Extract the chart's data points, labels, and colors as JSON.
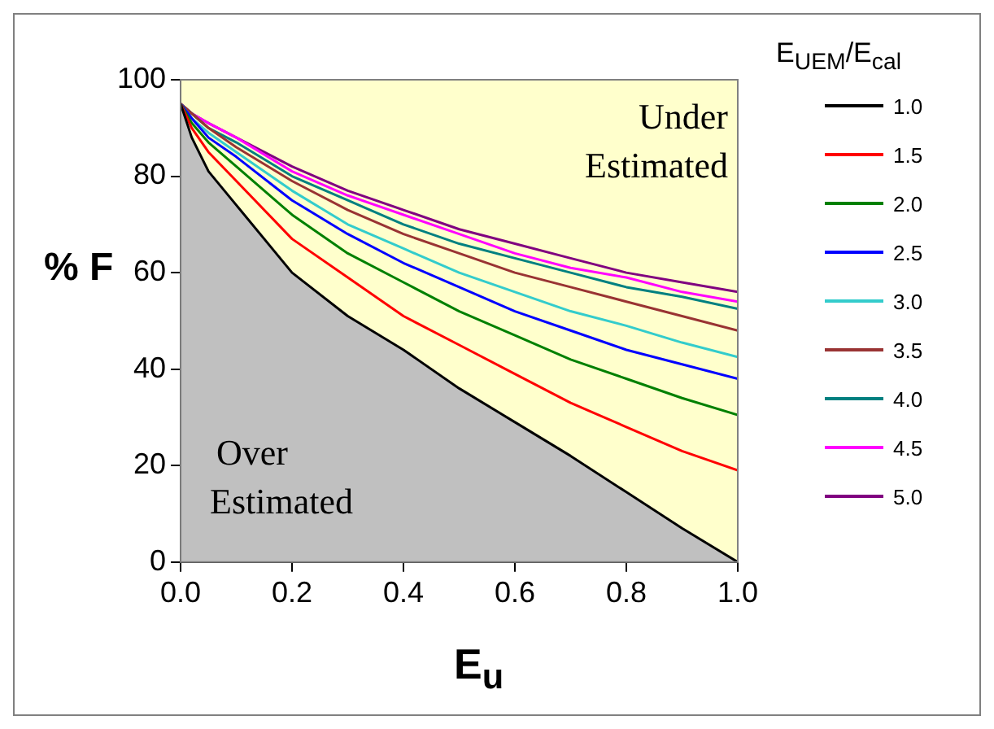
{
  "chart_data": {
    "type": "line",
    "xlabel": "E$_{u}$",
    "ylabel": "% F",
    "legend_title": "E$_{UEM}$/E$_{cal}$",
    "x": [
      0,
      0.02,
      0.05,
      0.1,
      0.2,
      0.3,
      0.4,
      0.5,
      0.6,
      0.7,
      0.8,
      0.9,
      1.0
    ],
    "series": [
      {
        "name": "1.0",
        "type": "area",
        "color": "#000000",
        "values": [
          95,
          88,
          81,
          74,
          60,
          51,
          44,
          36,
          29,
          22,
          14.5,
          7,
          0
        ]
      },
      {
        "name": "1.5",
        "color": "#ff0000",
        "values": [
          95,
          90,
          85,
          79,
          67,
          59,
          51,
          45,
          39,
          33,
          28,
          23,
          19
        ]
      },
      {
        "name": "2.0",
        "color": "#008000",
        "values": [
          95,
          91,
          87,
          82,
          72,
          64,
          58,
          52,
          47,
          42,
          38,
          34,
          30.5
        ]
      },
      {
        "name": "2.5",
        "color": "#0000ff",
        "values": [
          95,
          92,
          88,
          84,
          75,
          68,
          62,
          57,
          52,
          48,
          44,
          41,
          38
        ]
      },
      {
        "name": "3.0",
        "color": "#33cccc",
        "values": [
          95,
          92,
          89,
          85,
          77,
          70,
          65,
          60,
          56,
          52,
          49,
          45.5,
          42.5
        ]
      },
      {
        "name": "3.5",
        "color": "#993333",
        "values": [
          95,
          93,
          90,
          86,
          79,
          73,
          68,
          64,
          60,
          57,
          54,
          51,
          48
        ]
      },
      {
        "name": "4.0",
        "color": "#008080",
        "values": [
          95,
          93,
          90,
          87,
          80,
          75,
          70,
          66,
          63,
          60,
          57,
          55,
          52.5
        ]
      },
      {
        "name": "4.5",
        "color": "#ff00ff",
        "values": [
          95,
          93,
          91,
          88,
          81,
          76,
          72,
          68,
          64,
          61,
          59,
          56,
          54
        ]
      },
      {
        "name": "5.0",
        "color": "#800080",
        "values": [
          95,
          93,
          91,
          88,
          82,
          77,
          73,
          69,
          66,
          63,
          60,
          58,
          56
        ]
      }
    ],
    "xlim": [
      0,
      1
    ],
    "xticks": [
      {
        "value": 0,
        "label": "0.0"
      },
      0.2,
      0.4,
      0.6,
      0.8,
      {
        "value": 1,
        "label": "1.0"
      }
    ],
    "ylim": [
      0,
      100
    ],
    "yticks": [
      0,
      20,
      40,
      60,
      80,
      100
    ],
    "grid": false,
    "legend": "right",
    "marker": "none",
    "line_style": "solid",
    "annotations": [
      "Under Estimated",
      "Over Estimated"
    ]
  }
}
